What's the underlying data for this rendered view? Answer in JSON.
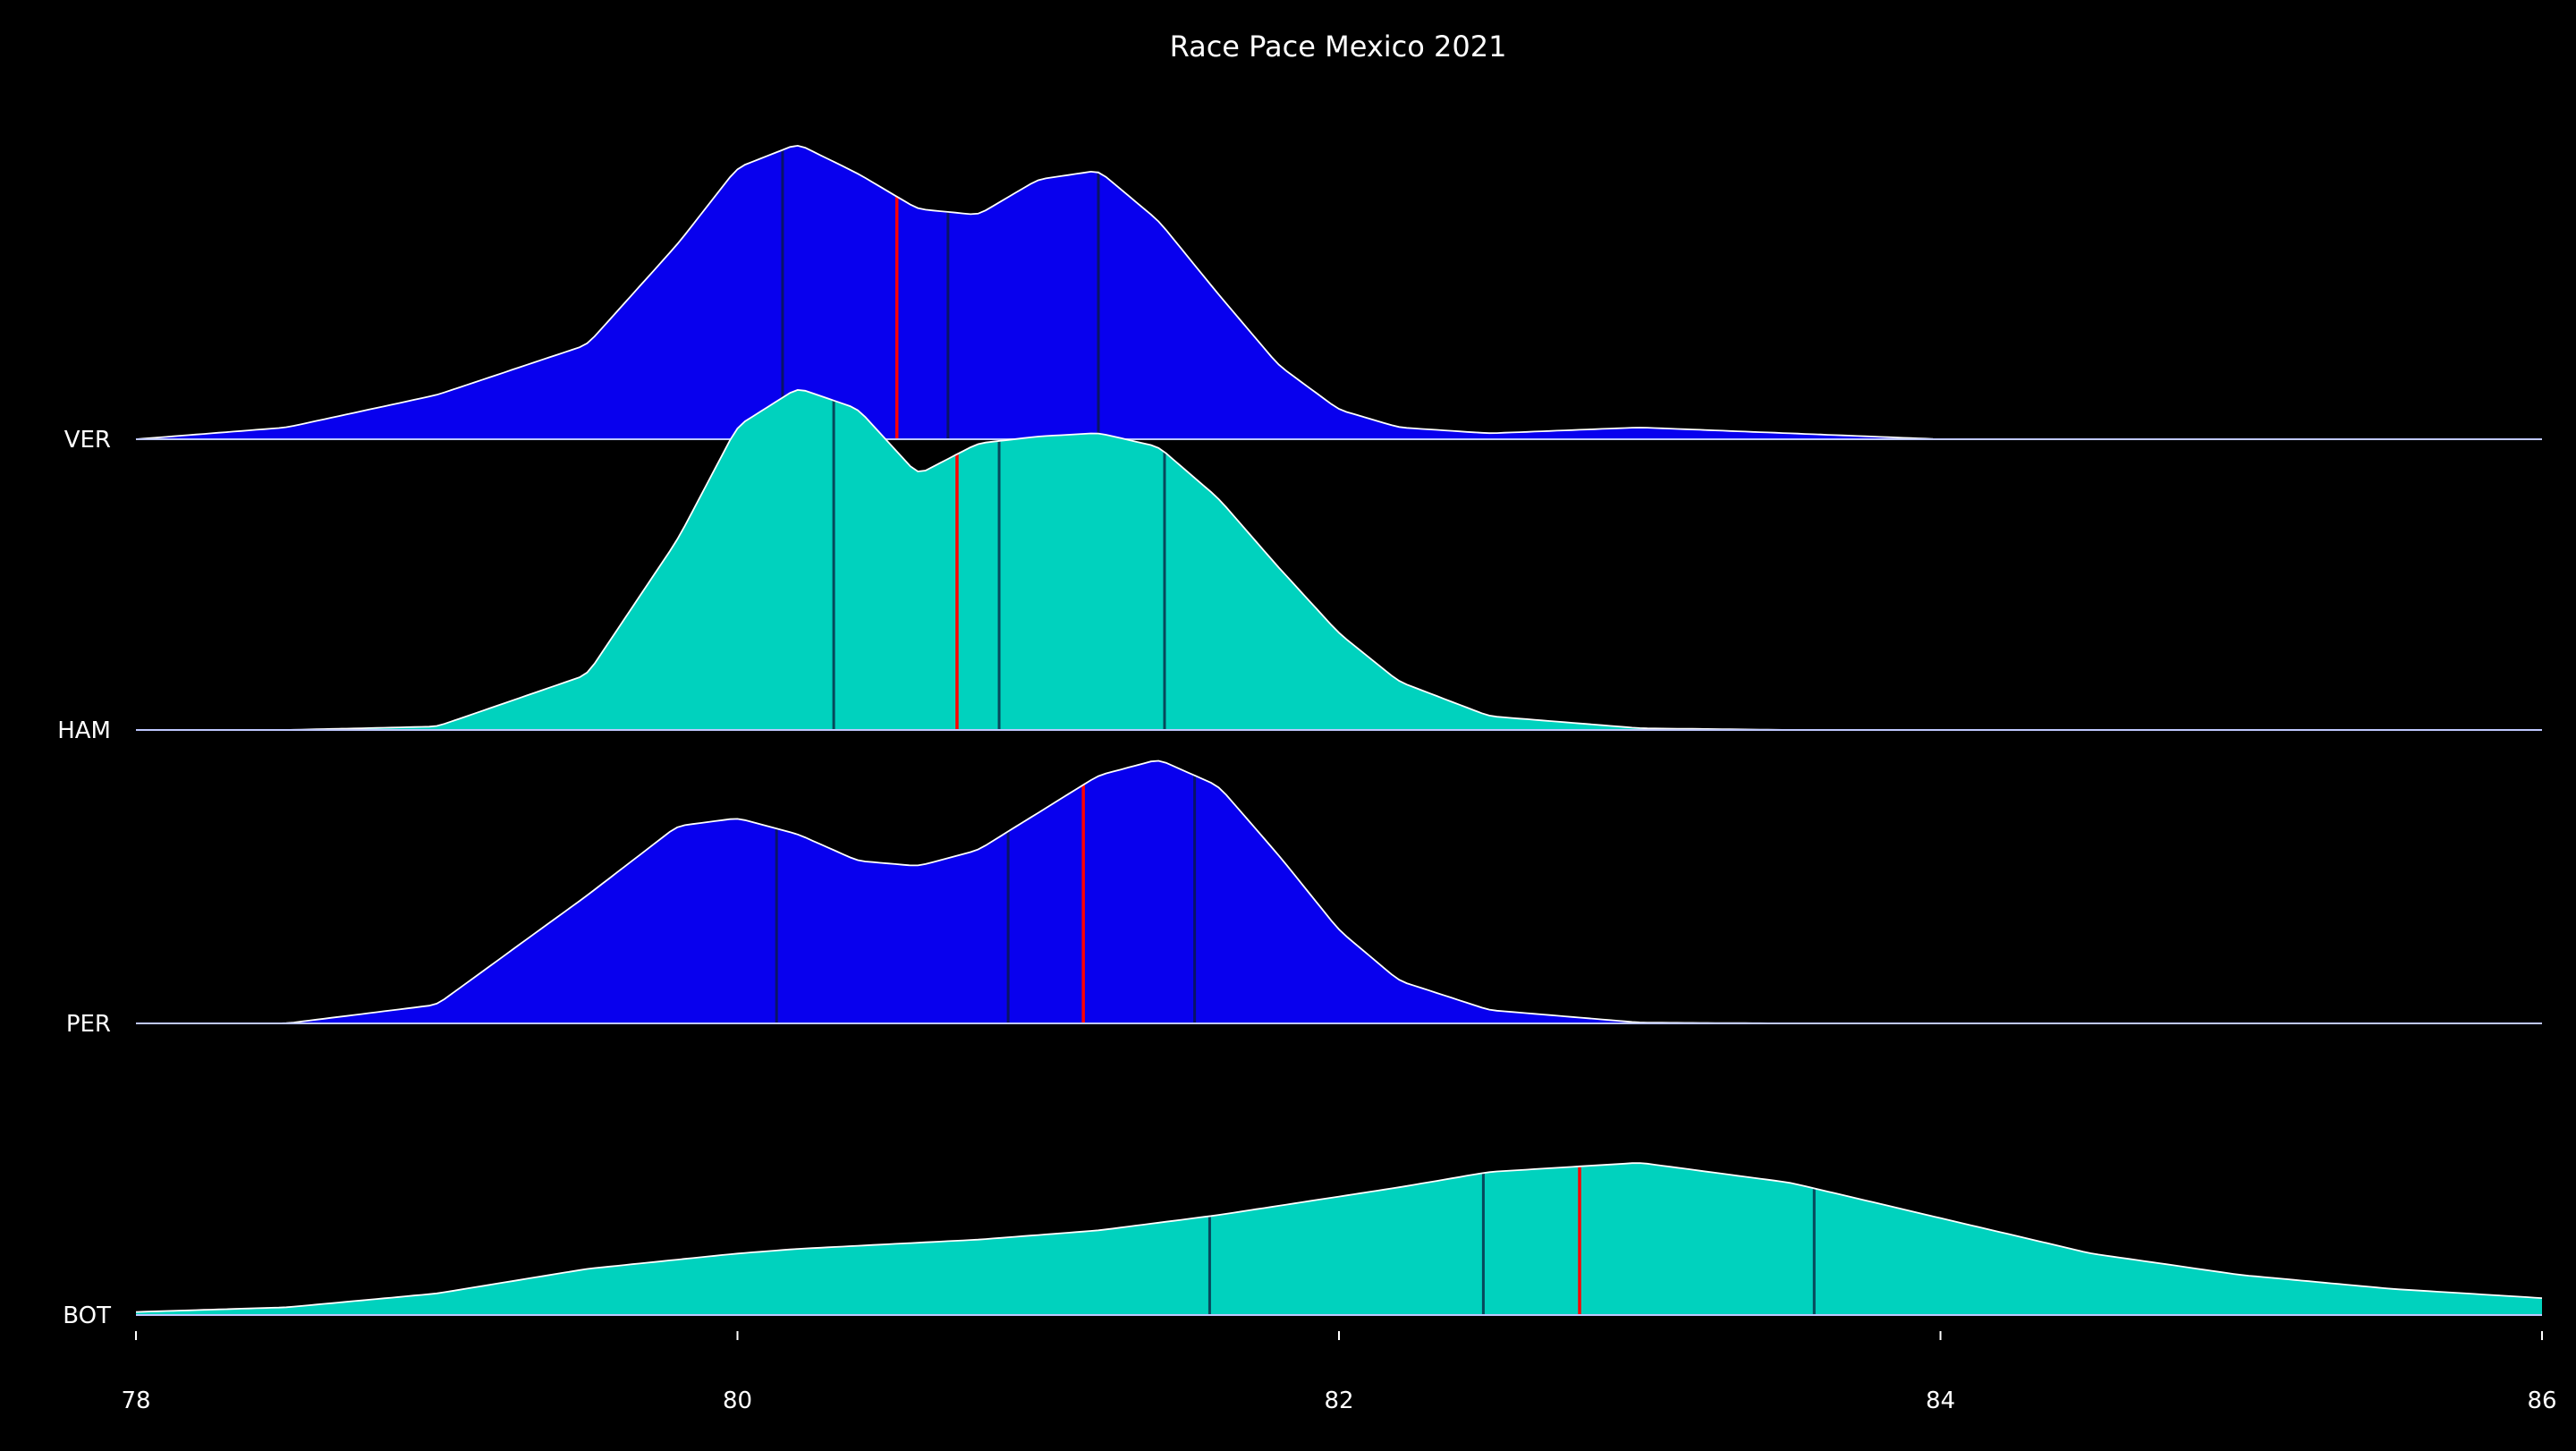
{
  "chart_data": {
    "type": "area",
    "title": "Race Pace Mexico 2021",
    "xlabel": "",
    "ylabel": "",
    "xlim": [
      78,
      86
    ],
    "x_ticks": [
      "78",
      "80",
      "82",
      "84",
      "86"
    ],
    "grid": false,
    "legend": "none",
    "colors": {
      "background": "#000000",
      "outline": "#ffffff",
      "mean_line": "#ff0000",
      "quartile_line": "#0a1a3a"
    },
    "x": [
      78.0,
      78.5,
      79.0,
      79.5,
      79.8,
      80.0,
      80.2,
      80.4,
      80.6,
      80.8,
      81.0,
      81.2,
      81.4,
      81.6,
      81.8,
      82.0,
      82.2,
      82.5,
      83.0,
      83.5,
      84.0,
      84.5,
      85.0,
      85.5,
      86.0
    ],
    "series": [
      {
        "name": "VER",
        "color": "#0800ee",
        "density": [
          0.0,
          0.04,
          0.15,
          0.32,
          0.66,
          0.92,
          1.0,
          0.9,
          0.78,
          0.76,
          0.88,
          0.91,
          0.74,
          0.49,
          0.25,
          0.1,
          0.04,
          0.02,
          0.04,
          0.02,
          0.0,
          0.0,
          0.0,
          0.0,
          0.0
        ],
        "quartiles": [
          80.15,
          80.7,
          81.2
        ],
        "mean": 80.53
      },
      {
        "name": "HAM",
        "color": "#00d2be",
        "density": [
          0.0,
          0.0,
          0.01,
          0.16,
          0.55,
          0.88,
          0.99,
          0.93,
          0.74,
          0.83,
          0.85,
          0.86,
          0.82,
          0.67,
          0.47,
          0.28,
          0.14,
          0.04,
          0.005,
          0.0,
          0.0,
          0.0,
          0.0,
          0.0,
          0.0
        ],
        "quartiles": [
          80.32,
          80.87,
          81.42
        ],
        "mean": 80.73
      },
      {
        "name": "PER",
        "color": "#0800ee",
        "density": [
          0.0,
          0.0,
          0.07,
          0.48,
          0.74,
          0.77,
          0.71,
          0.61,
          0.59,
          0.65,
          0.79,
          0.93,
          0.99,
          0.89,
          0.63,
          0.35,
          0.16,
          0.05,
          0.003,
          0.0,
          0.0,
          0.0,
          0.0,
          0.0,
          0.0
        ],
        "quartiles": [
          80.13,
          80.9,
          81.52
        ],
        "mean": 81.15
      },
      {
        "name": "BOT",
        "color": "#00d2be",
        "density": [
          0.02,
          0.05,
          0.14,
          0.3,
          0.36,
          0.4,
          0.43,
          0.45,
          0.47,
          0.49,
          0.52,
          0.55,
          0.6,
          0.65,
          0.71,
          0.77,
          0.83,
          0.93,
          0.99,
          0.86,
          0.63,
          0.4,
          0.26,
          0.17,
          0.11
        ],
        "quartiles": [
          81.57,
          82.48,
          83.58
        ],
        "mean": 82.8
      }
    ]
  }
}
